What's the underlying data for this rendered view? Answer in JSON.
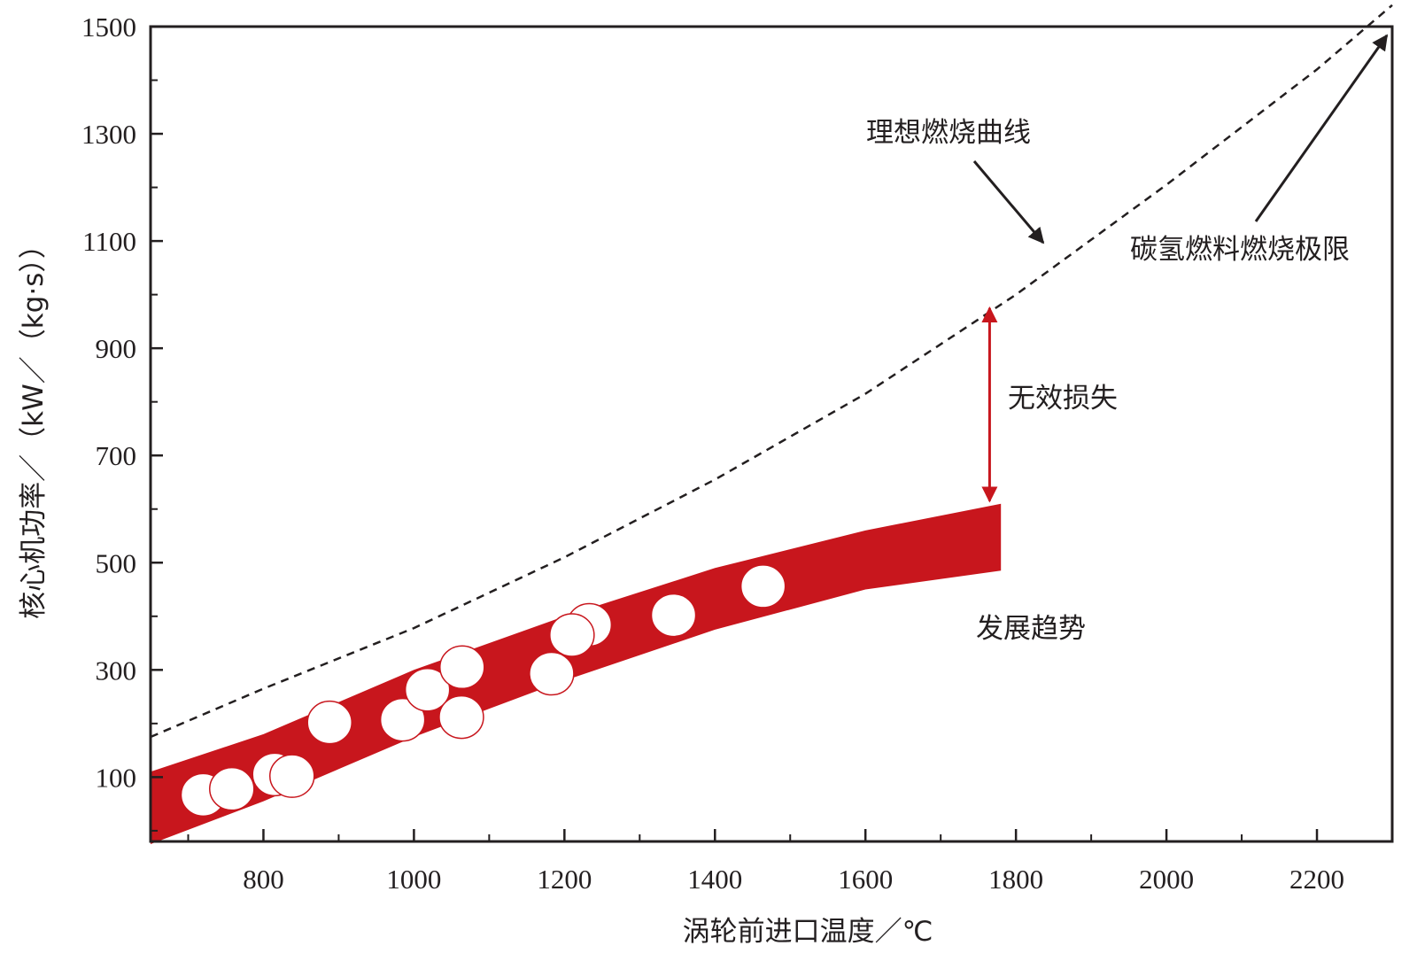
{
  "chart_data": {
    "type": "scatter",
    "xlabel": "涡轮前进口温度／℃",
    "ylabel": "核心机功率／（kW／（kg·s））",
    "xlim": [
      650,
      2300
    ],
    "ylim": [
      -20,
      1500
    ],
    "x_ticks": [
      800,
      1000,
      1200,
      1400,
      1600,
      1800,
      2000,
      2200
    ],
    "y_ticks": [
      100,
      300,
      500,
      700,
      900,
      1100,
      1300,
      1500
    ],
    "points": [
      {
        "x": 720,
        "y": 67
      },
      {
        "x": 758,
        "y": 78
      },
      {
        "x": 815,
        "y": 105
      },
      {
        "x": 838,
        "y": 102
      },
      {
        "x": 888,
        "y": 202
      },
      {
        "x": 985,
        "y": 207
      },
      {
        "x": 1018,
        "y": 263
      },
      {
        "x": 1064,
        "y": 305
      },
      {
        "x": 1063,
        "y": 212
      },
      {
        "x": 1183,
        "y": 293
      },
      {
        "x": 1233,
        "y": 384
      },
      {
        "x": 1210,
        "y": 365
      },
      {
        "x": 1345,
        "y": 402
      },
      {
        "x": 1464,
        "y": 456
      }
    ],
    "ideal_curve": {
      "x": [
        650,
        800,
        1000,
        1200,
        1400,
        1600,
        1800,
        2000,
        2200,
        2300
      ],
      "y": [
        175,
        265,
        378,
        510,
        655,
        815,
        1000,
        1205,
        1420,
        1540
      ]
    },
    "trend_band": {
      "x": [
        650,
        800,
        1000,
        1200,
        1400,
        1600,
        1780
      ],
      "lower": [
        -25,
        55,
        175,
        280,
        375,
        450,
        485
      ],
      "upper": [
        110,
        180,
        300,
        400,
        490,
        560,
        610
      ]
    },
    "annotations": {
      "ideal": "理想燃烧曲线",
      "limit": "碳氢燃料燃烧极限",
      "loss": "无效损失",
      "trend": "发展趋势"
    },
    "colors": {
      "band": "#c8161d",
      "loss_arrow": "#c8161d",
      "curve": "#231f20",
      "axis": "#231f20"
    },
    "grid": false
  }
}
